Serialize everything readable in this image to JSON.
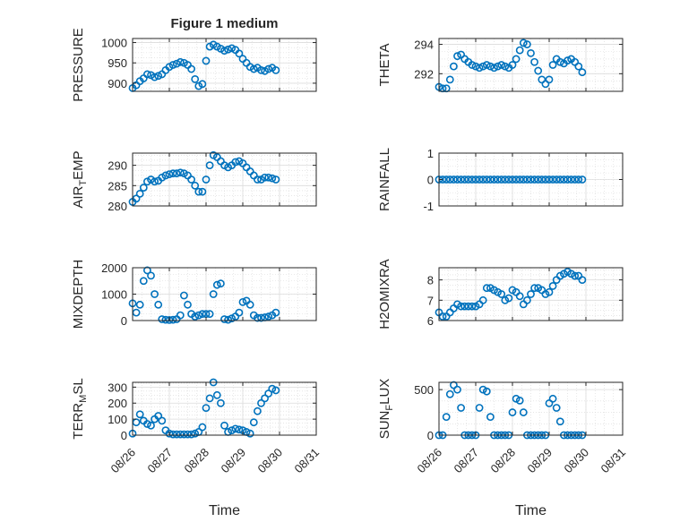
{
  "chart_data": [
    {
      "type": "scatter",
      "title": "Figure 1 medium",
      "ylabel": "PRESSURE",
      "xlabel": "",
      "xlim": [
        "08/26",
        "08/31"
      ],
      "xticks": [
        "08/26",
        "08/27",
        "08/28",
        "08/29",
        "08/30",
        "08/31"
      ],
      "ylim": [
        880,
        1010
      ],
      "yticks": [
        900,
        950,
        1000
      ],
      "grid": true,
      "x": [
        0,
        0.1,
        0.2,
        0.3,
        0.4,
        0.5,
        0.6,
        0.7,
        0.8,
        0.9,
        1.0,
        1.1,
        1.2,
        1.3,
        1.4,
        1.5,
        1.6,
        1.7,
        1.8,
        1.9,
        2.0,
        2.1,
        2.2,
        2.3,
        2.4,
        2.5,
        2.6,
        2.7,
        2.8,
        2.9,
        3.0,
        3.1,
        3.2,
        3.3,
        3.4,
        3.5,
        3.6,
        3.7,
        3.8,
        3.9
      ],
      "y": [
        888,
        895,
        905,
        912,
        922,
        920,
        915,
        918,
        922,
        932,
        940,
        945,
        948,
        952,
        950,
        945,
        935,
        910,
        893,
        898,
        955,
        990,
        995,
        990,
        985,
        980,
        983,
        986,
        982,
        973,
        960,
        950,
        940,
        935,
        938,
        932,
        930,
        935,
        938,
        932
      ]
    },
    {
      "type": "scatter",
      "title": "",
      "ylabel": "THETA",
      "xlabel": "",
      "xlim": [
        "08/26",
        "08/31"
      ],
      "xticks": [
        "08/26",
        "08/27",
        "08/28",
        "08/29",
        "08/30",
        "08/31"
      ],
      "ylim": [
        290.8,
        294.4
      ],
      "yticks": [
        292,
        294
      ],
      "grid": true,
      "x": [
        0,
        0.1,
        0.2,
        0.3,
        0.4,
        0.5,
        0.6,
        0.7,
        0.8,
        0.9,
        1.0,
        1.1,
        1.2,
        1.3,
        1.4,
        1.5,
        1.6,
        1.7,
        1.8,
        1.9,
        2.0,
        2.1,
        2.2,
        2.3,
        2.4,
        2.5,
        2.6,
        2.7,
        2.8,
        2.9,
        3.0,
        3.1,
        3.2,
        3.3,
        3.4,
        3.5,
        3.6,
        3.7,
        3.8,
        3.9
      ],
      "y": [
        291.1,
        291.0,
        291.0,
        291.6,
        292.5,
        293.2,
        293.3,
        293.0,
        292.8,
        292.6,
        292.5,
        292.4,
        292.5,
        292.6,
        292.5,
        292.4,
        292.5,
        292.6,
        292.5,
        292.4,
        292.6,
        293.0,
        293.6,
        294.1,
        294.0,
        293.4,
        292.8,
        292.2,
        291.6,
        291.3,
        291.6,
        292.6,
        293.0,
        292.8,
        292.7,
        292.9,
        293.0,
        292.8,
        292.5,
        292.1
      ]
    },
    {
      "type": "scatter",
      "title": "",
      "ylabel": "AIR_TEMP",
      "xlabel": "",
      "xlim": [
        "08/26",
        "08/31"
      ],
      "xticks": [
        "08/26",
        "08/27",
        "08/28",
        "08/29",
        "08/30",
        "08/31"
      ],
      "ylim": [
        280,
        293
      ],
      "yticks": [
        280,
        285,
        290
      ],
      "grid": true,
      "x": [
        0,
        0.1,
        0.2,
        0.3,
        0.4,
        0.5,
        0.6,
        0.7,
        0.8,
        0.9,
        1.0,
        1.1,
        1.2,
        1.3,
        1.4,
        1.5,
        1.6,
        1.7,
        1.8,
        1.9,
        2.0,
        2.1,
        2.2,
        2.3,
        2.4,
        2.5,
        2.6,
        2.7,
        2.8,
        2.9,
        3.0,
        3.1,
        3.2,
        3.3,
        3.4,
        3.5,
        3.6,
        3.7,
        3.8,
        3.9
      ],
      "y": [
        281,
        281.8,
        283,
        284.5,
        286,
        286.5,
        286,
        286.2,
        287,
        287.5,
        287.8,
        288,
        288,
        288.2,
        288,
        287.5,
        286.5,
        285,
        283.5,
        283.5,
        286.5,
        290,
        292.5,
        292,
        291,
        290,
        289.5,
        290,
        290.8,
        291,
        290.5,
        289.5,
        288.5,
        287.5,
        286.5,
        286.5,
        287,
        287,
        286.8,
        286.5
      ]
    },
    {
      "type": "scatter",
      "title": "",
      "ylabel": "RAINFALL",
      "xlabel": "",
      "xlim": [
        "08/26",
        "08/31"
      ],
      "xticks": [
        "08/26",
        "08/27",
        "08/28",
        "08/29",
        "08/30",
        "08/31"
      ],
      "ylim": [
        -1,
        1
      ],
      "yticks": [
        -1,
        0,
        1
      ],
      "grid": true,
      "x": [
        0,
        0.1,
        0.2,
        0.3,
        0.4,
        0.5,
        0.6,
        0.7,
        0.8,
        0.9,
        1.0,
        1.1,
        1.2,
        1.3,
        1.4,
        1.5,
        1.6,
        1.7,
        1.8,
        1.9,
        2.0,
        2.1,
        2.2,
        2.3,
        2.4,
        2.5,
        2.6,
        2.7,
        2.8,
        2.9,
        3.0,
        3.1,
        3.2,
        3.3,
        3.4,
        3.5,
        3.6,
        3.7,
        3.8,
        3.9
      ],
      "y": [
        0,
        0,
        0,
        0,
        0,
        0,
        0,
        0,
        0,
        0,
        0,
        0,
        0,
        0,
        0,
        0,
        0,
        0,
        0,
        0,
        0,
        0,
        0,
        0,
        0,
        0,
        0,
        0,
        0,
        0,
        0,
        0,
        0,
        0,
        0,
        0,
        0,
        0,
        0,
        0
      ]
    },
    {
      "type": "scatter",
      "title": "",
      "ylabel": "MIXDEPTH",
      "xlabel": "",
      "xlim": [
        "08/26",
        "08/31"
      ],
      "xticks": [
        "08/26",
        "08/27",
        "08/28",
        "08/29",
        "08/30",
        "08/31"
      ],
      "ylim": [
        0,
        2000
      ],
      "yticks": [
        0,
        1000,
        2000
      ],
      "grid": true,
      "x": [
        0,
        0.1,
        0.2,
        0.3,
        0.4,
        0.5,
        0.6,
        0.7,
        0.8,
        0.9,
        1.0,
        1.1,
        1.2,
        1.3,
        1.4,
        1.5,
        1.6,
        1.7,
        1.8,
        1.9,
        2.0,
        2.1,
        2.2,
        2.3,
        2.4,
        2.5,
        2.6,
        2.7,
        2.8,
        2.9,
        3.0,
        3.1,
        3.2,
        3.3,
        3.4,
        3.5,
        3.6,
        3.7,
        3.8,
        3.9
      ],
      "y": [
        650,
        300,
        600,
        1500,
        1900,
        1700,
        1000,
        600,
        50,
        30,
        20,
        30,
        50,
        200,
        950,
        600,
        250,
        150,
        200,
        250,
        250,
        250,
        1000,
        1350,
        1400,
        50,
        30,
        80,
        150,
        300,
        700,
        750,
        600,
        200,
        100,
        100,
        120,
        150,
        200,
        300
      ]
    },
    {
      "type": "scatter",
      "title": "",
      "ylabel": "H2OMIXRA",
      "xlabel": "",
      "xlim": [
        "08/26",
        "08/31"
      ],
      "xticks": [
        "08/26",
        "08/27",
        "08/28",
        "08/29",
        "08/30",
        "08/31"
      ],
      "ylim": [
        6,
        8.6
      ],
      "yticks": [
        6,
        7,
        8
      ],
      "grid": true,
      "x": [
        0,
        0.1,
        0.2,
        0.3,
        0.4,
        0.5,
        0.6,
        0.7,
        0.8,
        0.9,
        1.0,
        1.1,
        1.2,
        1.3,
        1.4,
        1.5,
        1.6,
        1.7,
        1.8,
        1.9,
        2.0,
        2.1,
        2.2,
        2.3,
        2.4,
        2.5,
        2.6,
        2.7,
        2.8,
        2.9,
        3.0,
        3.1,
        3.2,
        3.3,
        3.4,
        3.5,
        3.6,
        3.7,
        3.8,
        3.9
      ],
      "y": [
        6.4,
        6.2,
        6.2,
        6.4,
        6.6,
        6.8,
        6.7,
        6.7,
        6.7,
        6.7,
        6.7,
        6.8,
        7.0,
        7.6,
        7.6,
        7.5,
        7.4,
        7.3,
        7.0,
        7.1,
        7.5,
        7.4,
        7.2,
        6.8,
        7.0,
        7.3,
        7.6,
        7.6,
        7.5,
        7.3,
        7.4,
        7.7,
        8.0,
        8.2,
        8.3,
        8.4,
        8.3,
        8.2,
        8.2,
        8.0
      ]
    },
    {
      "type": "scatter",
      "title": "",
      "ylabel": "TERR_MSL",
      "xlabel": "Time",
      "xlim": [
        "08/26",
        "08/31"
      ],
      "xticks": [
        "08/26",
        "08/27",
        "08/28",
        "08/29",
        "08/30",
        "08/31"
      ],
      "ylim": [
        0,
        330
      ],
      "yticks": [
        0,
        100,
        200,
        300
      ],
      "grid": true,
      "x": [
        0,
        0.1,
        0.2,
        0.3,
        0.4,
        0.5,
        0.6,
        0.7,
        0.8,
        0.9,
        1.0,
        1.1,
        1.2,
        1.3,
        1.4,
        1.5,
        1.6,
        1.7,
        1.8,
        1.9,
        2.0,
        2.1,
        2.2,
        2.3,
        2.4,
        2.5,
        2.6,
        2.7,
        2.8,
        2.9,
        3.0,
        3.1,
        3.2,
        3.3,
        3.4,
        3.5,
        3.6,
        3.7,
        3.8,
        3.9
      ],
      "y": [
        10,
        80,
        130,
        90,
        70,
        60,
        100,
        120,
        90,
        30,
        10,
        5,
        5,
        5,
        5,
        5,
        5,
        10,
        20,
        50,
        170,
        230,
        330,
        250,
        200,
        60,
        20,
        30,
        40,
        35,
        30,
        20,
        10,
        80,
        150,
        200,
        230,
        260,
        290,
        280
      ]
    },
    {
      "type": "scatter",
      "title": "",
      "ylabel": "SUN_FLUX",
      "xlabel": "Time",
      "xlim": [
        "08/26",
        "08/31"
      ],
      "xticks": [
        "08/26",
        "08/27",
        "08/28",
        "08/29",
        "08/30",
        "08/31"
      ],
      "ylim": [
        0,
        580
      ],
      "yticks": [
        0,
        500
      ],
      "grid": true,
      "x": [
        0,
        0.1,
        0.2,
        0.3,
        0.4,
        0.5,
        0.6,
        0.7,
        0.8,
        0.9,
        1.0,
        1.1,
        1.2,
        1.3,
        1.4,
        1.5,
        1.6,
        1.7,
        1.8,
        1.9,
        2.0,
        2.1,
        2.2,
        2.3,
        2.4,
        2.5,
        2.6,
        2.7,
        2.8,
        2.9,
        3.0,
        3.1,
        3.2,
        3.3,
        3.4,
        3.5,
        3.6,
        3.7,
        3.8,
        3.9
      ],
      "y": [
        0,
        0,
        200,
        450,
        550,
        500,
        300,
        0,
        0,
        0,
        0,
        300,
        500,
        480,
        200,
        0,
        0,
        0,
        0,
        0,
        250,
        400,
        380,
        250,
        0,
        0,
        0,
        0,
        0,
        0,
        350,
        400,
        300,
        150,
        0,
        0,
        0,
        0,
        0,
        0
      ]
    }
  ]
}
